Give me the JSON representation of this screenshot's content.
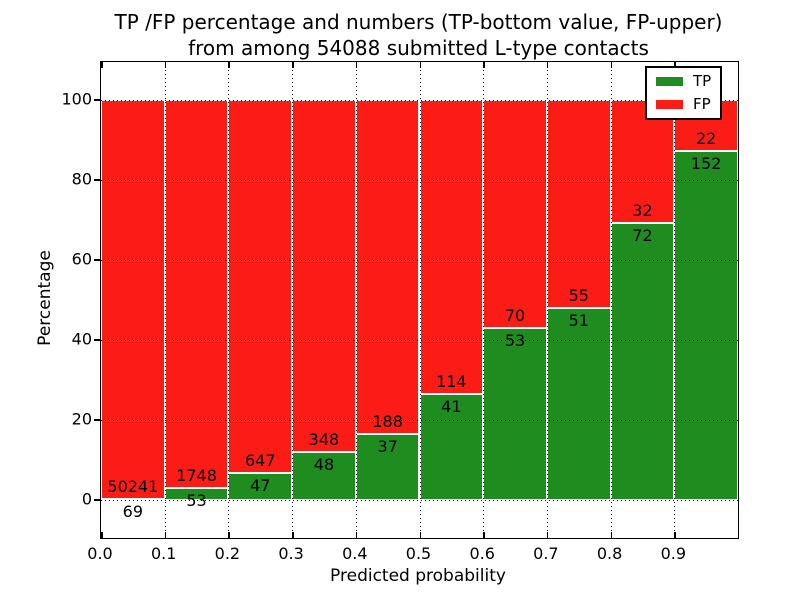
{
  "title": {
    "line1": "TP /FP percentage and numbers (TP-bottom value, FP-upper)",
    "line2": "from among 54088 submitted L-type contacts"
  },
  "chart_data": {
    "type": "bar",
    "stacked": true,
    "normalized_to_percent": true,
    "title": "TP /FP percentage and numbers (TP-bottom value, FP-upper) from among 54088 submitted L-type contacts",
    "xlabel": "Predicted probability",
    "ylabel": "Percentage",
    "total_submitted": 54088,
    "bin_starts": [
      0.0,
      0.1,
      0.2,
      0.3,
      0.4,
      0.5,
      0.6,
      0.7,
      0.8,
      0.9
    ],
    "bar_width": 0.1,
    "series": [
      {
        "name": "TP",
        "color": "#1e8c1e",
        "counts": [
          69,
          53,
          47,
          48,
          37,
          41,
          53,
          51,
          72,
          152
        ]
      },
      {
        "name": "FP",
        "color": "#fc1c16",
        "counts": [
          50241,
          1748,
          647,
          348,
          188,
          114,
          70,
          55,
          32,
          22
        ]
      }
    ],
    "tp_percent": [
      0.14,
      2.94,
      6.77,
      12.12,
      16.44,
      26.45,
      43.09,
      48.11,
      69.23,
      87.36
    ],
    "xlim": [
      0.0,
      1.0
    ],
    "ylim": [
      -9.5,
      109.5
    ],
    "yticks": [
      "0",
      "20",
      "40",
      "60",
      "80",
      "100"
    ],
    "ytick_values": [
      0,
      20,
      40,
      60,
      80,
      100
    ],
    "xticks": [
      "0.0",
      "0.1",
      "0.2",
      "0.3",
      "0.4",
      "0.5",
      "0.6",
      "0.7",
      "0.8",
      "0.9"
    ],
    "grid": true,
    "grid_style": "dotted",
    "legend": {
      "position": "upper right",
      "entries": [
        {
          "label": "TP",
          "color": "#1e8c1e"
        },
        {
          "label": "FP",
          "color": "#fc1c16"
        }
      ]
    }
  }
}
